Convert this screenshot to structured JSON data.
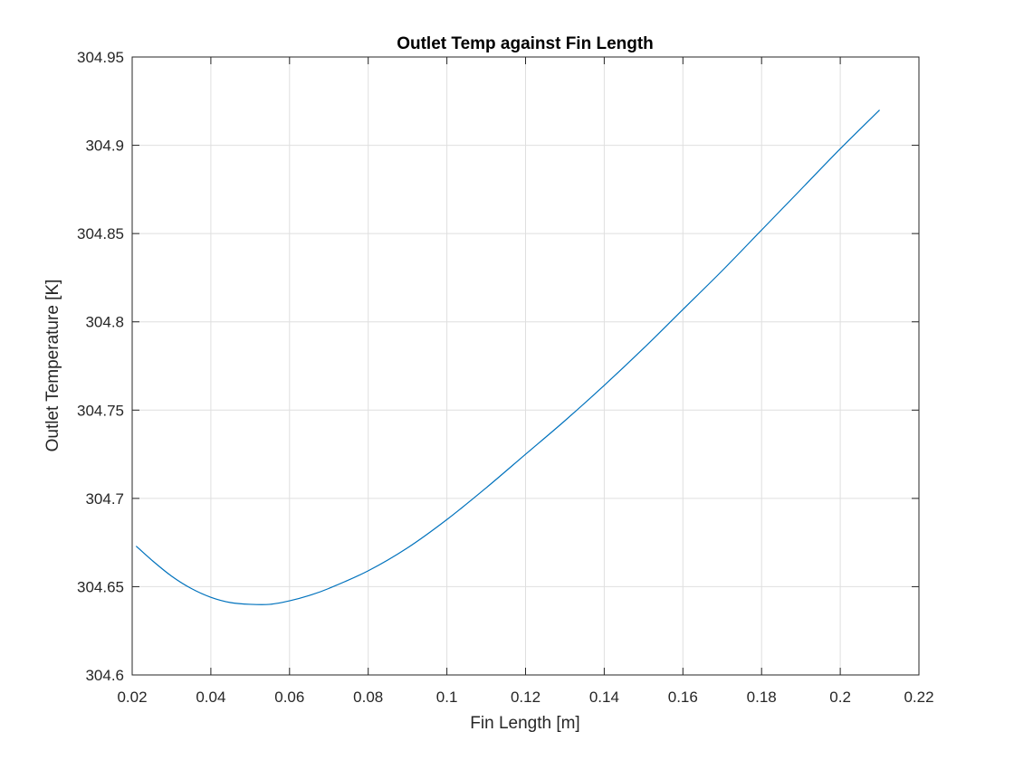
{
  "chart_data": {
    "type": "line",
    "title": "Outlet Temp against Fin Length",
    "xlabel": "Fin Length [m]",
    "ylabel": "Outlet Temperature [K]",
    "xlim": [
      0.02,
      0.22
    ],
    "ylim": [
      304.6,
      304.95
    ],
    "xticks": [
      0.02,
      0.04,
      0.06,
      0.08,
      0.1,
      0.12,
      0.14,
      0.16,
      0.18,
      0.2,
      0.22
    ],
    "xtick_labels": [
      "0.02",
      "0.04",
      "0.06",
      "0.08",
      "0.1",
      "0.12",
      "0.14",
      "0.16",
      "0.18",
      "0.2",
      "0.22"
    ],
    "yticks": [
      304.6,
      304.65,
      304.7,
      304.75,
      304.8,
      304.85,
      304.9,
      304.95
    ],
    "ytick_labels": [
      "304.6",
      "304.65",
      "304.7",
      "304.75",
      "304.8",
      "304.85",
      "304.9",
      "304.95"
    ],
    "grid": true,
    "series": [
      {
        "color": "#0072bd",
        "x": [
          0.021,
          0.025,
          0.03,
          0.035,
          0.04,
          0.045,
          0.05,
          0.055,
          0.06,
          0.065,
          0.07,
          0.08,
          0.09,
          0.1,
          0.11,
          0.12,
          0.13,
          0.14,
          0.15,
          0.16,
          0.17,
          0.18,
          0.19,
          0.2,
          0.21
        ],
        "y": [
          304.673,
          304.665,
          304.656,
          304.649,
          304.644,
          304.641,
          304.64,
          304.64,
          304.642,
          304.645,
          304.649,
          304.659,
          304.672,
          304.688,
          304.706,
          304.725,
          304.744,
          304.764,
          304.785,
          304.807,
          304.829,
          304.852,
          304.875,
          304.898,
          304.92
        ]
      }
    ]
  }
}
